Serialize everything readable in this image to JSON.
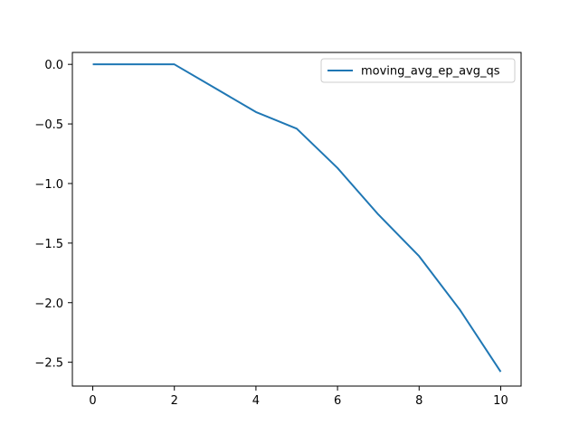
{
  "chart_data": {
    "type": "line",
    "title": "",
    "xlabel": "",
    "ylabel": "",
    "x": [
      0,
      1,
      2,
      3,
      4,
      5,
      6,
      7,
      8,
      9,
      10
    ],
    "series": [
      {
        "name": "moving_avg_ep_avg_qs",
        "color": "#1f77b4",
        "values": [
          0.0,
          0.0,
          0.0,
          -0.2,
          -0.4,
          -0.54,
          -0.87,
          -1.26,
          -1.61,
          -2.06,
          -2.58
        ]
      }
    ],
    "xlim": [
      -0.5,
      10.5
    ],
    "ylim": [
      -2.7,
      0.1
    ],
    "xticks": [
      0,
      2,
      4,
      6,
      8,
      10
    ],
    "xtick_labels": [
      "0",
      "2",
      "4",
      "6",
      "8",
      "10"
    ],
    "yticks": [
      0.0,
      -0.5,
      -1.0,
      -1.5,
      -2.0,
      -2.5
    ],
    "ytick_labels": [
      "0.0",
      "−0.5",
      "−1.0",
      "−1.5",
      "−2.0",
      "−2.5"
    ],
    "grid": false,
    "legend_position": "top-right"
  }
}
